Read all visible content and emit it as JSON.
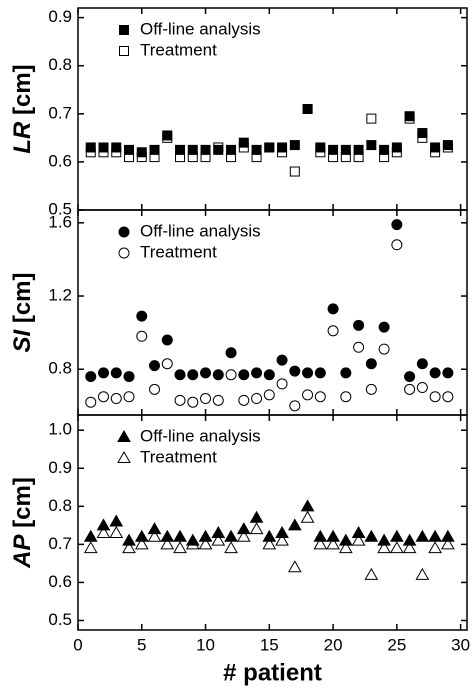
{
  "chart_data": [
    {
      "type": "scatter",
      "ylabel_var": "LR",
      "ylabel_unit": "[cm]",
      "marker": "square",
      "x": [
        1,
        2,
        3,
        4,
        5,
        6,
        7,
        8,
        9,
        10,
        11,
        12,
        13,
        14,
        15,
        16,
        17,
        18,
        19,
        20,
        21,
        22,
        23,
        24,
        25,
        26,
        27,
        28,
        29
      ],
      "series": [
        {
          "name": "Off-line analysis",
          "color": "#000000",
          "filled": true,
          "values": [
            0.63,
            0.63,
            0.63,
            0.625,
            0.62,
            0.625,
            0.655,
            0.625,
            0.625,
            0.625,
            0.625,
            0.625,
            0.64,
            0.625,
            0.63,
            0.63,
            0.635,
            0.71,
            0.63,
            0.625,
            0.625,
            0.625,
            0.635,
            0.625,
            0.63,
            0.695,
            0.66,
            0.63,
            0.635
          ]
        },
        {
          "name": "Treatment",
          "color": "#000000",
          "filled": false,
          "values": [
            0.62,
            0.62,
            0.62,
            0.61,
            0.61,
            0.61,
            0.65,
            0.61,
            0.61,
            0.61,
            0.63,
            0.61,
            0.63,
            0.61,
            0.63,
            0.62,
            0.58,
            0.71,
            0.62,
            0.61,
            0.61,
            0.61,
            0.69,
            0.61,
            0.62,
            0.69,
            0.65,
            0.62,
            0.63
          ]
        }
      ],
      "xlim": [
        0,
        30.5
      ],
      "xticks": [
        0,
        5,
        10,
        15,
        20,
        25,
        30
      ],
      "ylim": [
        0.5,
        0.92
      ],
      "yticks": [
        0.5,
        0.6,
        0.7,
        0.8,
        0.9
      ]
    },
    {
      "type": "scatter",
      "ylabel_var": "SI",
      "ylabel_unit": "[cm]",
      "marker": "circle",
      "x": [
        1,
        2,
        3,
        4,
        5,
        6,
        7,
        8,
        9,
        10,
        11,
        12,
        13,
        14,
        15,
        16,
        17,
        18,
        19,
        20,
        21,
        22,
        23,
        24,
        25,
        26,
        27,
        28,
        29
      ],
      "series": [
        {
          "name": "Off-line analysis",
          "color": "#000000",
          "filled": true,
          "values": [
            0.76,
            0.78,
            0.78,
            0.76,
            1.09,
            0.82,
            0.96,
            0.77,
            0.77,
            0.78,
            0.77,
            0.89,
            0.77,
            0.78,
            0.77,
            0.85,
            0.79,
            0.78,
            0.78,
            1.13,
            0.78,
            1.04,
            0.83,
            1.03,
            1.59,
            0.76,
            0.83,
            0.78,
            0.78
          ]
        },
        {
          "name": "Treatment",
          "color": "#000000",
          "filled": false,
          "values": [
            0.62,
            0.65,
            0.64,
            0.65,
            0.98,
            0.69,
            0.83,
            0.63,
            0.62,
            0.64,
            0.63,
            0.77,
            0.63,
            0.64,
            0.66,
            0.72,
            0.6,
            0.66,
            0.65,
            1.01,
            0.65,
            0.92,
            0.69,
            0.91,
            1.48,
            0.69,
            0.7,
            0.65,
            0.65
          ]
        }
      ],
      "xlim": [
        0,
        30.5
      ],
      "xticks": [
        0,
        5,
        10,
        15,
        20,
        25,
        30
      ],
      "ylim": [
        0.55,
        1.67
      ],
      "yticks": [
        0.8,
        1.2,
        1.6
      ]
    },
    {
      "type": "scatter",
      "ylabel_var": "AP",
      "ylabel_unit": "[cm]",
      "marker": "triangle",
      "xlabel": "# patient",
      "x": [
        1,
        2,
        3,
        4,
        5,
        6,
        7,
        8,
        9,
        10,
        11,
        12,
        13,
        14,
        15,
        16,
        17,
        18,
        19,
        20,
        21,
        22,
        23,
        24,
        25,
        26,
        27,
        28,
        29
      ],
      "series": [
        {
          "name": "Off-line analysis",
          "color": "#000000",
          "filled": true,
          "values": [
            0.72,
            0.75,
            0.76,
            0.71,
            0.72,
            0.74,
            0.72,
            0.72,
            0.71,
            0.72,
            0.73,
            0.72,
            0.74,
            0.77,
            0.72,
            0.73,
            0.75,
            0.8,
            0.72,
            0.72,
            0.71,
            0.73,
            0.72,
            0.71,
            0.72,
            0.71,
            0.72,
            0.72,
            0.72
          ]
        },
        {
          "name": "Treatment",
          "color": "#000000",
          "filled": false,
          "values": [
            0.69,
            0.73,
            0.73,
            0.69,
            0.7,
            0.72,
            0.7,
            0.69,
            0.7,
            0.7,
            0.71,
            0.69,
            0.72,
            0.74,
            0.7,
            0.71,
            0.64,
            0.77,
            0.7,
            0.7,
            0.69,
            0.71,
            0.62,
            0.69,
            0.69,
            0.69,
            0.62,
            0.69,
            0.7
          ]
        }
      ],
      "xlim": [
        0,
        30.5
      ],
      "xticks": [
        0,
        5,
        10,
        15,
        20,
        25,
        30
      ],
      "ylim": [
        0.475,
        1.04
      ],
      "yticks": [
        0.5,
        0.6,
        0.7,
        0.8,
        0.9,
        {
          "value": 1.0,
          "label": "1.0"
        }
      ]
    }
  ]
}
